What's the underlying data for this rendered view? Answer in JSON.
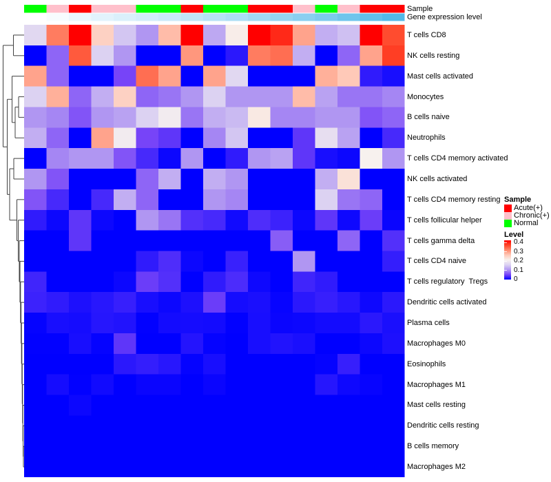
{
  "chart_data": {
    "type": "heatmap",
    "title": "",
    "rows": [
      "T cells CD8",
      "NK cells resting",
      "Mast cells activated",
      "Monocytes",
      "B cells naive",
      "Neutrophils",
      "T cells CD4 memory activated",
      "NK cells activated",
      "T cells CD4 memory resting",
      "T cells follicular helper",
      "T cells gamma delta",
      "T cells CD4 naive",
      "T cells regulatory  Tregs",
      "Dendritic cells activated",
      "Plasma cells",
      "Macrophages M0",
      "Eosinophils",
      "Macrophages M1",
      "Mast cells resting",
      "Dendritic cells resting",
      "B cells memory",
      "Macrophages M2"
    ],
    "columns_count": 17,
    "value_range": [
      0,
      0.4
    ],
    "values": [
      [
        0.16,
        0.31,
        0.4,
        0.24,
        0.14,
        0.1,
        0.26,
        0.4,
        0.115,
        0.205,
        0.4,
        0.37,
        0.28,
        0.12,
        0.135,
        0.4,
        0.345
      ],
      [
        0,
        0.07,
        0.335,
        0.15,
        0.1,
        0,
        0,
        0.29,
        0,
        0.018,
        0.31,
        0.32,
        0.12,
        0,
        0.07,
        0.28,
        0.355
      ],
      [
        0.28,
        0.07,
        0,
        0,
        0.05,
        0.32,
        0.28,
        0,
        0.28,
        0.16,
        0,
        0,
        0,
        0.27,
        0.25,
        0.02,
        0.01
      ],
      [
        0.15,
        0.27,
        0.07,
        0.12,
        0.24,
        0.07,
        0.08,
        0.1,
        0.15,
        0.1,
        0.1,
        0.1,
        0.26,
        0.11,
        0.08,
        0.08,
        0.09
      ],
      [
        0.1,
        0.09,
        0.06,
        0.1,
        0.11,
        0.15,
        0.19,
        0.08,
        0.12,
        0.13,
        0.21,
        0.09,
        0.09,
        0.1,
        0.1,
        0.06,
        0.07
      ],
      [
        0.12,
        0.07,
        0,
        0.28,
        0.19,
        0.05,
        0.04,
        0,
        0.09,
        0.14,
        0,
        0,
        0.04,
        0.17,
        0.11,
        0,
        0.03
      ],
      [
        0,
        0.09,
        0.1,
        0.1,
        0.06,
        0.03,
        0.005,
        0.1,
        0,
        0.02,
        0.1,
        0.11,
        0.04,
        0.01,
        0.005,
        0.2,
        0.1
      ],
      [
        0.1,
        0.06,
        0,
        0,
        0,
        0.07,
        0.12,
        0,
        0.12,
        0.1,
        0,
        0,
        0,
        0.12,
        0.22,
        0,
        0
      ],
      [
        0.06,
        0.03,
        0,
        0.03,
        0.12,
        0.07,
        0,
        0,
        0.1,
        0.09,
        0,
        0,
        0,
        0.15,
        0.08,
        0.07,
        0
      ],
      [
        0.02,
        0.005,
        0.04,
        0.005,
        0,
        0.1,
        0.08,
        0.035,
        0.03,
        0.007,
        0.033,
        0.025,
        0.005,
        0.04,
        0.006,
        0.045,
        0.004
      ],
      [
        0,
        0,
        0.04,
        0,
        0,
        0,
        0,
        0,
        0,
        0,
        0,
        0.065,
        0,
        0,
        0.07,
        0,
        0.035
      ],
      [
        0,
        0,
        0,
        0,
        0,
        0.02,
        0.033,
        0.005,
        0,
        0.024,
        0,
        0,
        0.1,
        0,
        0,
        0,
        0.022
      ],
      [
        0.027,
        0,
        0,
        0,
        0.005,
        0.045,
        0.035,
        0,
        0.02,
        0.032,
        0.006,
        0,
        0.027,
        0.02,
        0,
        0,
        0
      ],
      [
        0.025,
        0.02,
        0.012,
        0.017,
        0.023,
        0.01,
        0.005,
        0.012,
        0.045,
        0.009,
        0.011,
        0.003,
        0.018,
        0.023,
        0.017,
        0.006,
        0.018
      ],
      [
        0.002,
        0.01,
        0.009,
        0.016,
        0.014,
        0.001,
        0.008,
        0.009,
        0.008,
        0.001,
        0.01,
        0.004,
        0.005,
        0.008,
        0.008,
        0.018,
        0.011
      ],
      [
        0.001,
        0.001,
        0.01,
        0.002,
        0.04,
        0,
        0,
        0.015,
        0.002,
        0,
        0.01,
        0.014,
        0.011,
        0,
        0,
        0.005,
        0.012
      ],
      [
        0,
        0,
        0,
        0,
        0.018,
        0.022,
        0.017,
        0.002,
        0.01,
        0,
        0,
        0,
        0,
        0.002,
        0.023,
        0,
        0
      ],
      [
        0,
        0.009,
        0.001,
        0.007,
        0,
        0.004,
        0.004,
        0,
        0.004,
        0,
        0,
        0,
        0,
        0.016,
        0.006,
        0.003,
        0
      ],
      [
        0,
        0,
        0.005,
        0,
        0,
        0,
        0,
        0,
        0,
        0,
        0,
        0,
        0,
        0,
        0,
        0,
        0
      ],
      [
        0,
        0,
        0,
        0,
        0,
        0,
        0,
        0,
        0,
        0,
        0,
        0,
        0,
        0,
        0,
        0,
        0
      ],
      [
        0,
        0,
        0,
        0,
        0,
        0,
        0,
        0,
        0,
        0,
        0,
        0,
        0,
        0,
        0,
        0,
        0
      ],
      [
        0,
        0,
        0,
        0,
        0,
        0,
        0,
        0,
        0,
        0,
        0,
        0,
        0,
        0,
        0,
        0,
        0
      ]
    ],
    "col_annotations": {
      "sample": {
        "label": "Sample",
        "classes": [
          "Normal",
          "Chronic(+)",
          "Acute(+)",
          "Chronic(+)",
          "Chronic(+)",
          "Normal",
          "Normal",
          "Acute(+)",
          "Normal",
          "Normal",
          "Acute(+)",
          "Acute(+)",
          "Chronic(+)",
          "Normal",
          "Chronic(+)",
          "Acute(+)",
          "Acute(+)"
        ],
        "class_colors": {
          "Acute(+)": "#FF0000",
          "Chronic(+)": "#FFC0CB",
          "Normal": "#00FF00"
        }
      },
      "gene_expression": {
        "label": "Gene expression level",
        "colors": [
          "#FFFFFF",
          "#F7FCFE",
          "#EBF7FD",
          "#E2F3FC",
          "#DAF0FB",
          "#D2EDFA",
          "#CAEAF9",
          "#C0E6F7",
          "#B6E2F6",
          "#ACDEF5",
          "#A0D9F3",
          "#95D4F1",
          "#89CFF0",
          "#7DCAEE",
          "#6FC5EC",
          "#61BFEA",
          "#52B9E8"
        ]
      }
    },
    "colormap": {
      "stops": [
        [
          0,
          "#0000FF"
        ],
        [
          0.05,
          "#7744F8"
        ],
        [
          0.1,
          "#B096F2"
        ],
        [
          0.15,
          "#DCD2F2"
        ],
        [
          0.2,
          "#F7F1EE"
        ],
        [
          0.25,
          "#FFC9B8"
        ],
        [
          0.3,
          "#FF8A6E"
        ],
        [
          0.35,
          "#FF4528"
        ],
        [
          0.4,
          "#FF0000"
        ]
      ]
    },
    "dendrogram": {
      "merges": [
        [
          "m1",
          1,
          2,
          19.5
        ],
        [
          "m2",
          4,
          5,
          27
        ],
        [
          "m3",
          "m2",
          6,
          22
        ],
        [
          "m4",
          3,
          "m3",
          17.5
        ],
        [
          "m5",
          7,
          8,
          20
        ],
        [
          "n1",
          21,
          22,
          34
        ],
        [
          "n2",
          "n1",
          20,
          33.6
        ],
        [
          "n3",
          "n2",
          19,
          33.2
        ],
        [
          "n4",
          "n3",
          18,
          32.8
        ],
        [
          "n5",
          "n4",
          17,
          32.3
        ],
        [
          "n6",
          "n5",
          16,
          31.8
        ],
        [
          "n7",
          "n6",
          15,
          31.2
        ],
        [
          "n8",
          "n7",
          14,
          30.6
        ],
        [
          "n9",
          "n8",
          13,
          29.8
        ],
        [
          "n10",
          "n9",
          12,
          29.0
        ],
        [
          "n11",
          "n10",
          11,
          28.0
        ],
        [
          "n12",
          "n11",
          10,
          26.5
        ],
        [
          "n13",
          "n12",
          9,
          24.5
        ],
        [
          "c6",
          "m5",
          "n13",
          14
        ],
        [
          "c7",
          "m4",
          "c6",
          10.5
        ],
        [
          "root",
          "m1",
          "c7",
          4.5
        ]
      ]
    },
    "legend": {
      "sample": {
        "title": "Sample",
        "items": [
          {
            "label": "Acute(+)",
            "color": "#FF0000"
          },
          {
            "label": "Chronic(+)",
            "color": "#FFC0CB"
          },
          {
            "label": "Normal",
            "color": "#00FF00"
          }
        ]
      },
      "level": {
        "title": "Level",
        "ticks": [
          "0.4",
          "0.3",
          "0.2",
          "0.1",
          "0"
        ]
      }
    }
  }
}
